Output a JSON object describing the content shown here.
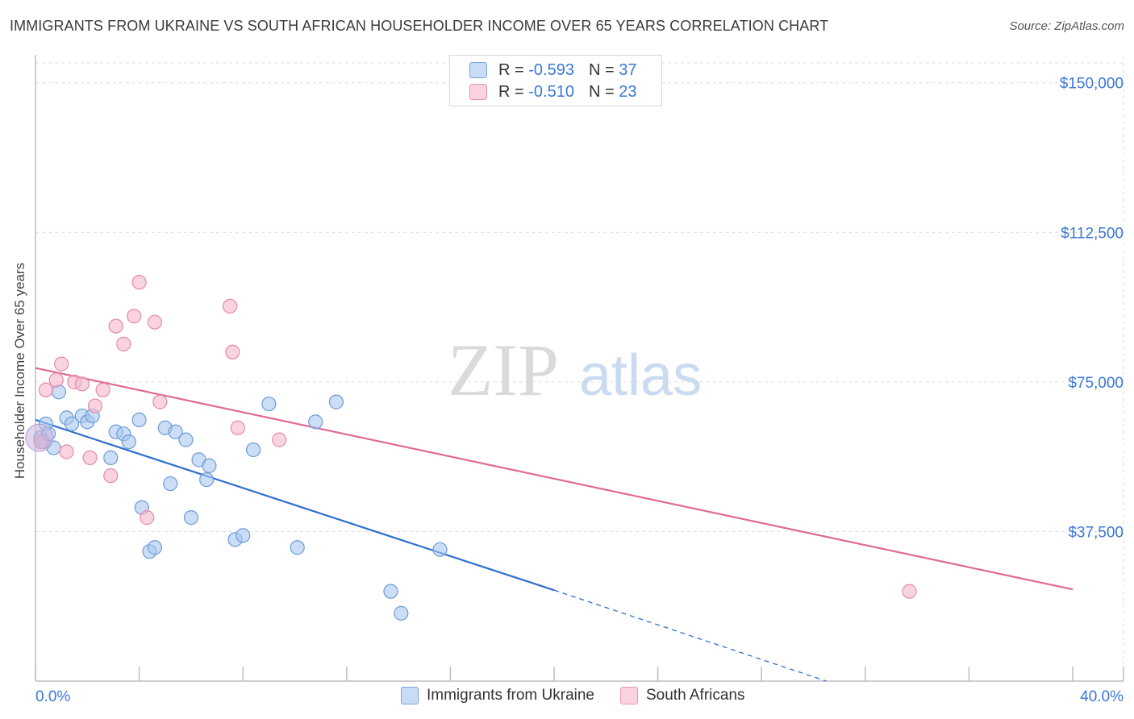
{
  "header": {
    "title": "IMMIGRANTS FROM UKRAINE VS SOUTH AFRICAN HOUSEHOLDER INCOME OVER 65 YEARS CORRELATION CHART",
    "source": "Source: ZipAtlas.com"
  },
  "watermark": {
    "zip": "ZIP",
    "atlas": "atlas"
  },
  "legend": {
    "rows": [
      {
        "r_label": "R =",
        "r_value": "-0.593",
        "n_label": "N =",
        "n_value": "37",
        "color": "#a9c8f0"
      },
      {
        "r_label": "R =",
        "r_value": "-0.510",
        "n_label": "N =",
        "n_value": "23",
        "color": "#f5b8cb"
      }
    ]
  },
  "bottom_legend": [
    {
      "label": "Immigrants from Ukraine",
      "color": "#a9c8f0"
    },
    {
      "label": "South Africans",
      "color": "#f5b8cb"
    }
  ],
  "chart_data": {
    "type": "scatter",
    "title": "IMMIGRANTS FROM UKRAINE VS SOUTH AFRICAN HOUSEHOLDER INCOME OVER 65 YEARS CORRELATION CHART",
    "xlabel": "",
    "ylabel": "Householder Income Over 65 years",
    "xlim": [
      0,
      40
    ],
    "ylim": [
      0,
      155000
    ],
    "x_tick_labels": [
      "0.0%",
      "40.0%"
    ],
    "y_ticks": [
      37500,
      75000,
      112500,
      150000
    ],
    "y_tick_labels": [
      "$37,500",
      "$75,000",
      "$112,500",
      "$150,000"
    ],
    "grid": true,
    "legend_position": "top-center",
    "colors": {
      "ukraine": "#3a78d4",
      "south_africa": "#e06a93"
    },
    "series": [
      {
        "name": "Immigrants from Ukraine",
        "fill": "#a9c8f0",
        "stroke": "#6b9bd8",
        "line": "#2f6fd0",
        "points": [
          [
            0.4,
            64500
          ],
          [
            0.7,
            58500
          ],
          [
            0.9,
            72500
          ],
          [
            1.2,
            66000
          ],
          [
            1.4,
            64500
          ],
          [
            1.8,
            66500
          ],
          [
            2.0,
            65000
          ],
          [
            2.2,
            66500
          ],
          [
            2.9,
            56000
          ],
          [
            3.1,
            62500
          ],
          [
            3.4,
            62000
          ],
          [
            3.6,
            60000
          ],
          [
            4.0,
            65500
          ],
          [
            4.1,
            43500
          ],
          [
            4.4,
            32500
          ],
          [
            4.6,
            33500
          ],
          [
            5.0,
            63500
          ],
          [
            5.2,
            49500
          ],
          [
            5.4,
            62500
          ],
          [
            5.8,
            60500
          ],
          [
            6.0,
            41000
          ],
          [
            6.3,
            55500
          ],
          [
            6.6,
            50500
          ],
          [
            6.7,
            54000
          ],
          [
            7.7,
            35500
          ],
          [
            8.0,
            36500
          ],
          [
            8.4,
            58000
          ],
          [
            9.0,
            69500
          ],
          [
            10.1,
            33500
          ],
          [
            10.8,
            65000
          ],
          [
            11.6,
            70000
          ],
          [
            13.7,
            22500
          ],
          [
            14.1,
            17000
          ],
          [
            15.6,
            33000
          ],
          [
            0.2,
            61000
          ],
          [
            0.3,
            60000
          ],
          [
            0.5,
            62000
          ]
        ],
        "trend": {
          "x0": 0,
          "y0": 65500,
          "x1": 20,
          "y1": 22800,
          "dashed_to_x": 30.5,
          "dashed_to_y": 0
        }
      },
      {
        "name": "South Africans",
        "fill": "#f5b8cb",
        "stroke": "#e58aa8",
        "line": "#e06a93",
        "points": [
          [
            0.4,
            73000
          ],
          [
            0.8,
            75500
          ],
          [
            1.0,
            79500
          ],
          [
            1.2,
            57500
          ],
          [
            1.5,
            75000
          ],
          [
            1.8,
            74500
          ],
          [
            2.1,
            56000
          ],
          [
            2.3,
            69000
          ],
          [
            2.6,
            73000
          ],
          [
            2.9,
            51500
          ],
          [
            3.1,
            89000
          ],
          [
            3.4,
            84500
          ],
          [
            3.8,
            91500
          ],
          [
            4.0,
            100000
          ],
          [
            4.3,
            41000
          ],
          [
            4.6,
            90000
          ],
          [
            4.8,
            70000
          ],
          [
            7.5,
            94000
          ],
          [
            7.6,
            82500
          ],
          [
            7.8,
            63500
          ],
          [
            9.4,
            60500
          ],
          [
            33.7,
            22500
          ],
          [
            0.2,
            60000
          ]
        ],
        "trend": {
          "x0": 0,
          "y0": 78500,
          "x1": 40,
          "y1": 23000
        }
      }
    ]
  }
}
